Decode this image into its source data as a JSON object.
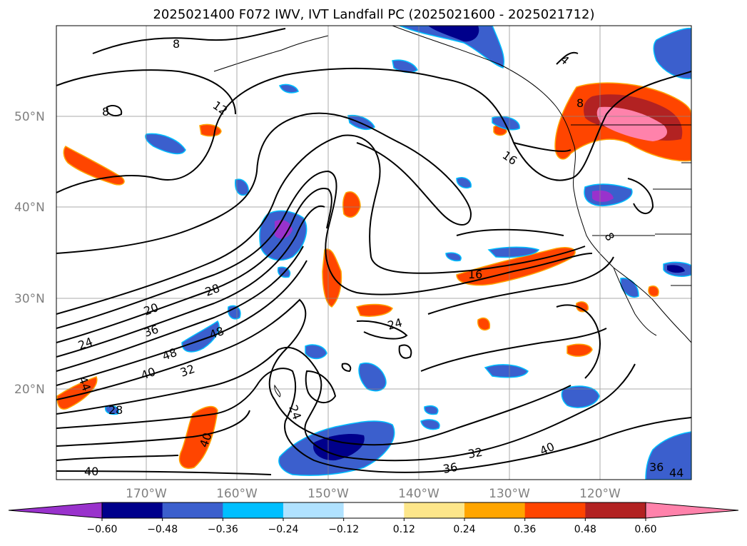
{
  "title": "2025021400 F072 IWV, IVT Landfall PC (2025021600 - 2025021712)",
  "lat_labels": [
    "50°N",
    "40°N",
    "30°N",
    "20°N"
  ],
  "lon_labels": [
    "170°W",
    "160°W",
    "150°W",
    "140°W",
    "130°W",
    "120°W"
  ],
  "colorbar": {
    "ticks": [
      "−0.60",
      "−0.48",
      "−0.36",
      "−0.24",
      "−0.12",
      "0.12",
      "0.24",
      "0.36",
      "0.48",
      "0.60"
    ],
    "colors": [
      "#9932cc",
      "#00008b",
      "#3b5fcd",
      "#00bfff",
      "#b0e2ff",
      "#ffffff",
      "#fde68a",
      "#ffa500",
      "#ff4500",
      "#b22222",
      "#ff82ab"
    ]
  },
  "contour_labels": [
    "8",
    "8",
    "12",
    "16",
    "16",
    "20",
    "24",
    "24",
    "24",
    "28",
    "28",
    "32",
    "32",
    "36",
    "36",
    "36",
    "40",
    "40",
    "40",
    "40",
    "44",
    "44",
    "48",
    "48",
    "4",
    "8",
    "8"
  ]
}
